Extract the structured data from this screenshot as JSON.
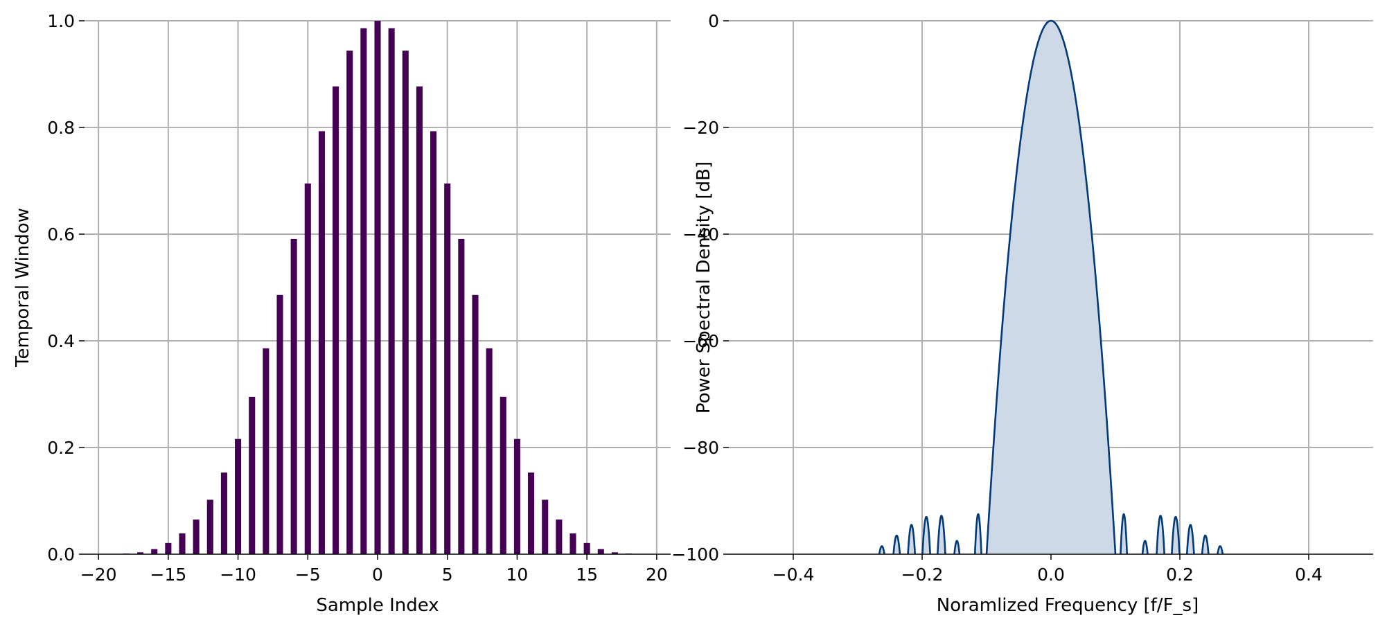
{
  "chart_data": [
    {
      "type": "bar",
      "title": "",
      "xlabel": "Sample Index",
      "ylabel": "Temporal Window",
      "xlim": [
        -21,
        21
      ],
      "ylim": [
        0,
        1.0
      ],
      "grid": true,
      "bar_color": "#440154",
      "xticks": [
        -20,
        -15,
        -10,
        -5,
        0,
        5,
        10,
        15,
        20
      ],
      "xtick_labels": [
        "−20",
        "−15",
        "−10",
        "−5",
        "0",
        "5",
        "10",
        "15",
        "20"
      ],
      "yticks": [
        0.0,
        0.2,
        0.4,
        0.6,
        0.8,
        1.0
      ],
      "ytick_labels": [
        "0.0",
        "0.2",
        "0.4",
        "0.6",
        "0.8",
        "1.0"
      ],
      "x": [
        -20,
        -19,
        -18,
        -17,
        -16,
        -15,
        -14,
        -13,
        -12,
        -11,
        -10,
        -9,
        -8,
        -7,
        -6,
        -5,
        -4,
        -3,
        -2,
        -1,
        0,
        1,
        2,
        3,
        4,
        5,
        6,
        7,
        8,
        9,
        10,
        11,
        12,
        13,
        14,
        15,
        16,
        17,
        18,
        19,
        20
      ],
      "values": [
        0.0,
        0.0,
        0.0013,
        0.0035,
        0.0095,
        0.021,
        0.039,
        0.065,
        0.102,
        0.153,
        0.216,
        0.295,
        0.386,
        0.486,
        0.591,
        0.695,
        0.793,
        0.877,
        0.944,
        0.986,
        1.0,
        0.986,
        0.944,
        0.877,
        0.793,
        0.695,
        0.591,
        0.486,
        0.386,
        0.295,
        0.216,
        0.153,
        0.102,
        0.065,
        0.039,
        0.021,
        0.0095,
        0.0035,
        0.0013,
        0.0,
        0.0
      ]
    },
    {
      "type": "area",
      "title": "",
      "xlabel": "Noramlized Frequency [f/F_s]",
      "ylabel": "Power Spectral Density [dB]",
      "xlim": [
        -0.5,
        0.5
      ],
      "ylim": [
        -100,
        0
      ],
      "grid": true,
      "line_color": "#023a78",
      "fill_color": "#cdd9e6",
      "xticks": [
        -0.4,
        -0.2,
        0.0,
        0.2,
        0.4
      ],
      "xtick_labels": [
        "−0.4",
        "−0.2",
        "0.0",
        "0.2",
        "0.4"
      ],
      "yticks": [
        -100,
        -80,
        -60,
        -40,
        -20,
        0
      ],
      "ytick_labels": [
        "−100",
        "−80",
        "−60",
        "−40",
        "−20",
        "0"
      ],
      "mainlobe": {
        "center": 0.0,
        "half_width": 0.1,
        "peak": 0
      },
      "sidelobes": [
        {
          "center": -0.2625,
          "half_width": 0.004,
          "peak": -98.5
        },
        {
          "center": -0.2395,
          "half_width": 0.005,
          "peak": -96.5
        },
        {
          "center": -0.2165,
          "half_width": 0.0055,
          "peak": -94.5
        },
        {
          "center": -0.1935,
          "half_width": 0.006,
          "peak": -93.0
        },
        {
          "center": -0.17,
          "half_width": 0.006,
          "peak": -92.8
        },
        {
          "center": -0.146,
          "half_width": 0.004,
          "peak": -97.5
        },
        {
          "center": -0.113,
          "half_width": 0.005,
          "peak": -92.5
        },
        {
          "center": 0.113,
          "half_width": 0.005,
          "peak": -92.5
        },
        {
          "center": 0.146,
          "half_width": 0.004,
          "peak": -97.5
        },
        {
          "center": 0.17,
          "half_width": 0.006,
          "peak": -92.8
        },
        {
          "center": 0.1935,
          "half_width": 0.006,
          "peak": -93.0
        },
        {
          "center": 0.2165,
          "half_width": 0.0055,
          "peak": -94.5
        },
        {
          "center": 0.2395,
          "half_width": 0.005,
          "peak": -96.5
        },
        {
          "center": 0.2625,
          "half_width": 0.004,
          "peak": -98.5
        }
      ]
    }
  ]
}
